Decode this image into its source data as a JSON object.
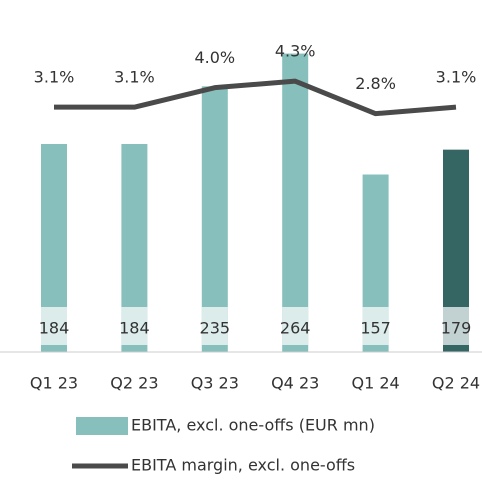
{
  "chart_data": {
    "type": "bar-line",
    "categories": [
      "Q1 23",
      "Q2 23",
      "Q3 23",
      "Q4 23",
      "Q1 24",
      "Q2 24"
    ],
    "series": [
      {
        "name": "EBITA, excl. one-offs (EUR mn)",
        "type": "bar",
        "color": "#86bfbb",
        "colors": [
          "#86bfbb",
          "#86bfbb",
          "#86bfbb",
          "#86bfbb",
          "#86bfbb",
          "#356664"
        ],
        "values": [
          184,
          184,
          235,
          264,
          157,
          179
        ]
      },
      {
        "name": "EBITA margin, excl. one-offs",
        "type": "line",
        "color": "#4a4a4a",
        "axis": "y2",
        "values": [
          3.1,
          3.1,
          4.0,
          4.3,
          2.8,
          3.1
        ],
        "value_labels": [
          "3.1%",
          "3.1%",
          "4.0%",
          "4.3%",
          "2.8%",
          "3.1%"
        ]
      }
    ],
    "ylim": [
      0,
      276
    ],
    "y2lim": [
      -8.2,
      6.2
    ]
  }
}
